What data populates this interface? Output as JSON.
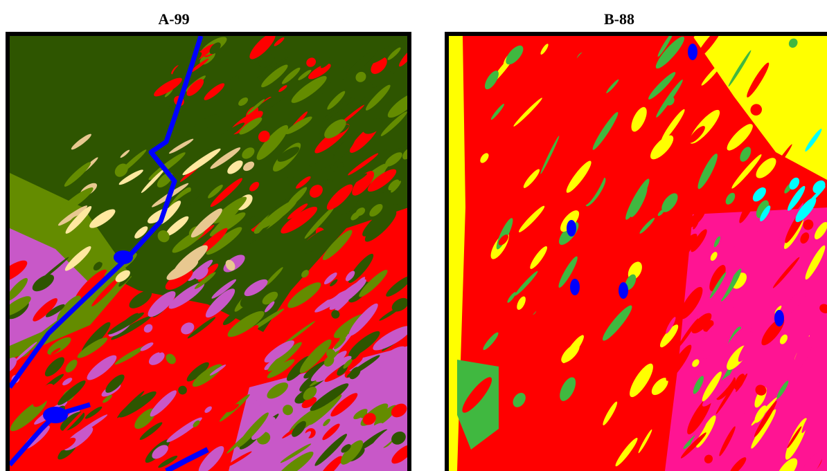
{
  "panels": [
    {
      "title": "A-99"
    },
    {
      "title": "B-88"
    }
  ]
}
